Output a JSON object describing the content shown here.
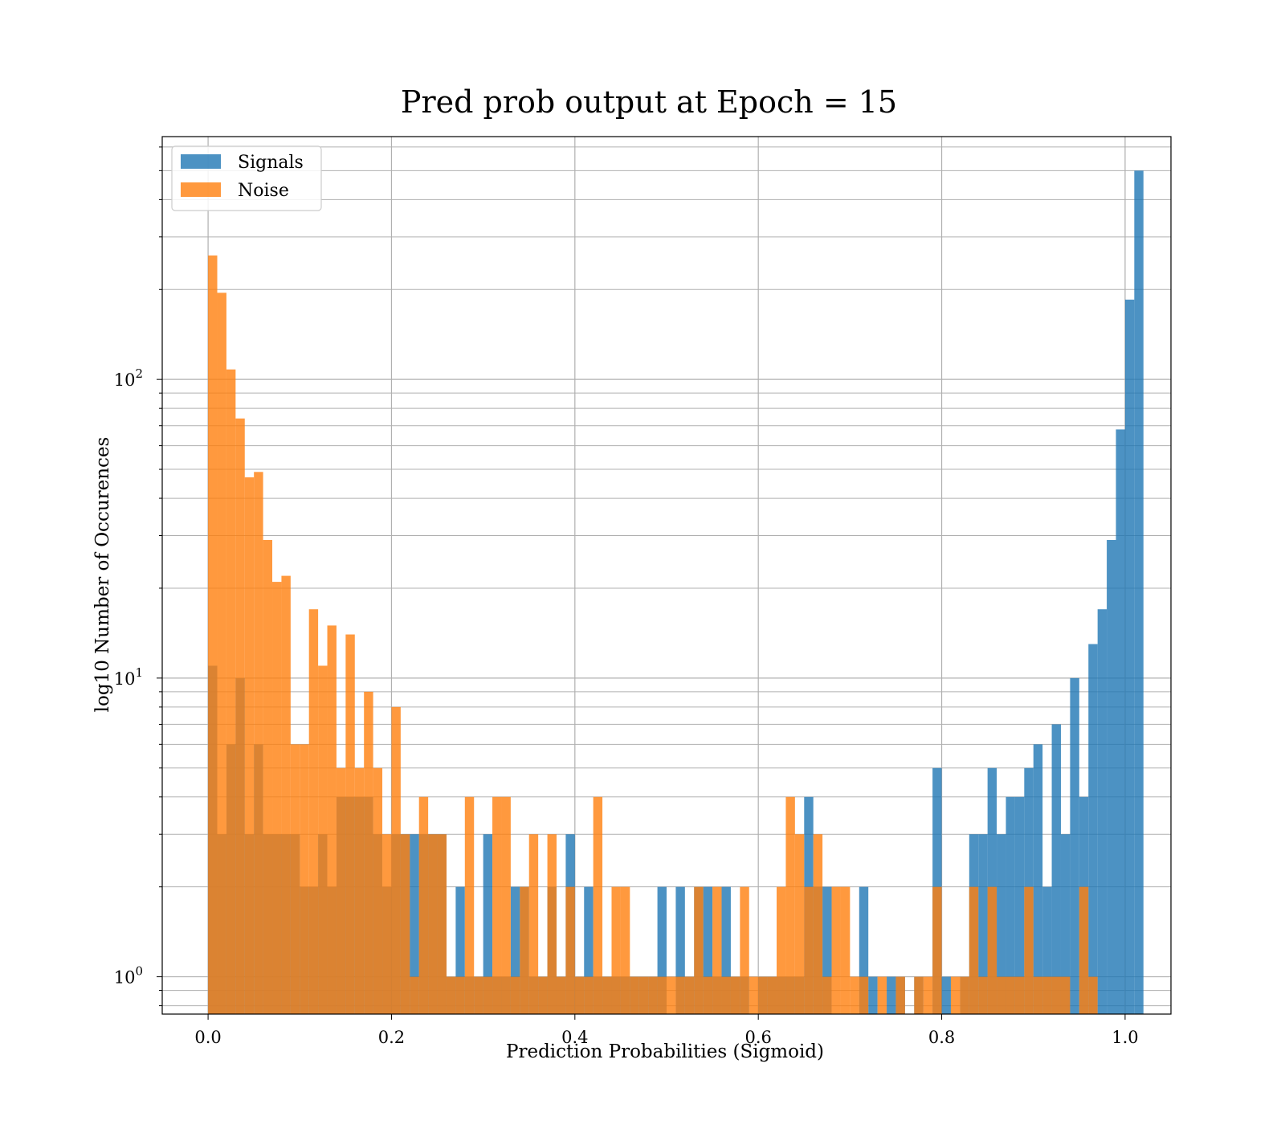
{
  "chart_data": {
    "type": "bar",
    "title": "Pred prob output at Epoch = 15",
    "xlabel": "Prediction Probabilities (Sigmoid)",
    "ylabel": "log10 Number of Occurences",
    "xlim": [
      -0.05,
      1.05
    ],
    "ylim": [
      0.75,
      650
    ],
    "yscale": "log",
    "grid": true,
    "legend_position": "top-left",
    "x_ticks": [
      {
        "value": 0.0,
        "label": "0.0"
      },
      {
        "value": 0.2,
        "label": "0.2"
      },
      {
        "value": 0.4,
        "label": "0.4"
      },
      {
        "value": 0.6,
        "label": "0.6"
      },
      {
        "value": 0.8,
        "label": "0.8"
      },
      {
        "value": 1.0,
        "label": "1.0"
      }
    ],
    "y_ticks": [
      {
        "value": 1,
        "base": "10",
        "exp": "0"
      },
      {
        "value": 10,
        "base": "10",
        "exp": "1"
      },
      {
        "value": 100,
        "base": "10",
        "exp": "2"
      }
    ],
    "bin_width": 0.01,
    "series": [
      {
        "name": "Signals",
        "color": "#1f77b4",
        "opacity": 0.8,
        "bins": [
          [
            0.005,
            11
          ],
          [
            0.015,
            3
          ],
          [
            0.025,
            6
          ],
          [
            0.035,
            10
          ],
          [
            0.045,
            3
          ],
          [
            0.055,
            6
          ],
          [
            0.065,
            3
          ],
          [
            0.075,
            3
          ],
          [
            0.085,
            3
          ],
          [
            0.095,
            3
          ],
          [
            0.105,
            2
          ],
          [
            0.115,
            2
          ],
          [
            0.125,
            3
          ],
          [
            0.135,
            2
          ],
          [
            0.145,
            4
          ],
          [
            0.155,
            4
          ],
          [
            0.165,
            4
          ],
          [
            0.175,
            4
          ],
          [
            0.185,
            3
          ],
          [
            0.195,
            2
          ],
          [
            0.205,
            3
          ],
          [
            0.215,
            3
          ],
          [
            0.225,
            3
          ],
          [
            0.235,
            3
          ],
          [
            0.245,
            3
          ],
          [
            0.255,
            3
          ],
          [
            0.265,
            1
          ],
          [
            0.275,
            2
          ],
          [
            0.285,
            1
          ],
          [
            0.295,
            1
          ],
          [
            0.305,
            3
          ],
          [
            0.315,
            1
          ],
          [
            0.325,
            1
          ],
          [
            0.335,
            2
          ],
          [
            0.345,
            2
          ],
          [
            0.355,
            1
          ],
          [
            0.365,
            1
          ],
          [
            0.375,
            2
          ],
          [
            0.385,
            1
          ],
          [
            0.395,
            3
          ],
          [
            0.405,
            1
          ],
          [
            0.415,
            2
          ],
          [
            0.425,
            1
          ],
          [
            0.435,
            1
          ],
          [
            0.445,
            1
          ],
          [
            0.455,
            1
          ],
          [
            0.465,
            1
          ],
          [
            0.475,
            1
          ],
          [
            0.485,
            1
          ],
          [
            0.495,
            2
          ],
          [
            0.515,
            2
          ],
          [
            0.525,
            1
          ],
          [
            0.535,
            2
          ],
          [
            0.545,
            2
          ],
          [
            0.555,
            1
          ],
          [
            0.565,
            2
          ],
          [
            0.575,
            1
          ],
          [
            0.585,
            1
          ],
          [
            0.605,
            1
          ],
          [
            0.615,
            1
          ],
          [
            0.625,
            1
          ],
          [
            0.635,
            1
          ],
          [
            0.645,
            1
          ],
          [
            0.655,
            4
          ],
          [
            0.665,
            2
          ],
          [
            0.675,
            2
          ],
          [
            0.715,
            2
          ],
          [
            0.725,
            1
          ],
          [
            0.745,
            1
          ],
          [
            0.755,
            1
          ],
          [
            0.775,
            1
          ],
          [
            0.795,
            5
          ],
          [
            0.805,
            1
          ],
          [
            0.825,
            1
          ],
          [
            0.835,
            3
          ],
          [
            0.845,
            3
          ],
          [
            0.855,
            5
          ],
          [
            0.865,
            3
          ],
          [
            0.875,
            4
          ],
          [
            0.885,
            4
          ],
          [
            0.895,
            5
          ],
          [
            0.905,
            6
          ],
          [
            0.915,
            2
          ],
          [
            0.925,
            7
          ],
          [
            0.935,
            3
          ],
          [
            0.945,
            10
          ],
          [
            0.955,
            4
          ],
          [
            0.965,
            13
          ],
          [
            0.975,
            17
          ],
          [
            0.985,
            29
          ],
          [
            0.995,
            68
          ],
          [
            1.005,
            185
          ],
          [
            1.015,
            500
          ]
        ]
      },
      {
        "name": "Noise",
        "color": "#ff7f0e",
        "opacity": 0.8,
        "bins": [
          [
            0.005,
            260
          ],
          [
            0.015,
            195
          ],
          [
            0.025,
            108
          ],
          [
            0.035,
            74
          ],
          [
            0.045,
            47
          ],
          [
            0.055,
            49
          ],
          [
            0.065,
            29
          ],
          [
            0.075,
            21
          ],
          [
            0.085,
            22
          ],
          [
            0.095,
            6
          ],
          [
            0.105,
            6
          ],
          [
            0.115,
            17
          ],
          [
            0.125,
            11
          ],
          [
            0.135,
            15
          ],
          [
            0.145,
            5
          ],
          [
            0.155,
            14
          ],
          [
            0.165,
            5
          ],
          [
            0.175,
            9
          ],
          [
            0.185,
            5
          ],
          [
            0.195,
            3
          ],
          [
            0.205,
            8
          ],
          [
            0.215,
            3
          ],
          [
            0.225,
            1
          ],
          [
            0.235,
            4
          ],
          [
            0.245,
            3
          ],
          [
            0.255,
            3
          ],
          [
            0.265,
            1
          ],
          [
            0.275,
            1
          ],
          [
            0.285,
            4
          ],
          [
            0.295,
            1
          ],
          [
            0.305,
            1
          ],
          [
            0.315,
            4
          ],
          [
            0.325,
            4
          ],
          [
            0.335,
            1
          ],
          [
            0.345,
            2
          ],
          [
            0.355,
            3
          ],
          [
            0.365,
            1
          ],
          [
            0.375,
            3
          ],
          [
            0.385,
            1
          ],
          [
            0.395,
            2
          ],
          [
            0.405,
            1
          ],
          [
            0.415,
            1
          ],
          [
            0.425,
            4
          ],
          [
            0.435,
            1
          ],
          [
            0.445,
            2
          ],
          [
            0.455,
            2
          ],
          [
            0.465,
            1
          ],
          [
            0.475,
            1
          ],
          [
            0.485,
            1
          ],
          [
            0.495,
            1
          ],
          [
            0.505,
            1
          ],
          [
            0.515,
            1
          ],
          [
            0.525,
            1
          ],
          [
            0.535,
            2
          ],
          [
            0.545,
            1
          ],
          [
            0.555,
            2
          ],
          [
            0.565,
            1
          ],
          [
            0.575,
            1
          ],
          [
            0.585,
            2
          ],
          [
            0.595,
            1
          ],
          [
            0.605,
            1
          ],
          [
            0.615,
            1
          ],
          [
            0.625,
            2
          ],
          [
            0.635,
            4
          ],
          [
            0.645,
            3
          ],
          [
            0.655,
            2
          ],
          [
            0.665,
            3
          ],
          [
            0.675,
            1
          ],
          [
            0.685,
            2
          ],
          [
            0.695,
            2
          ],
          [
            0.705,
            1
          ],
          [
            0.715,
            1
          ],
          [
            0.735,
            1
          ],
          [
            0.755,
            1
          ],
          [
            0.775,
            1
          ],
          [
            0.785,
            1
          ],
          [
            0.795,
            2
          ],
          [
            0.815,
            1
          ],
          [
            0.825,
            1
          ],
          [
            0.835,
            2
          ],
          [
            0.845,
            1
          ],
          [
            0.855,
            2
          ],
          [
            0.865,
            1
          ],
          [
            0.875,
            1
          ],
          [
            0.885,
            1
          ],
          [
            0.895,
            2
          ],
          [
            0.905,
            1
          ],
          [
            0.915,
            1
          ],
          [
            0.925,
            1
          ],
          [
            0.935,
            1
          ],
          [
            0.955,
            2
          ],
          [
            0.965,
            1
          ]
        ]
      }
    ]
  }
}
